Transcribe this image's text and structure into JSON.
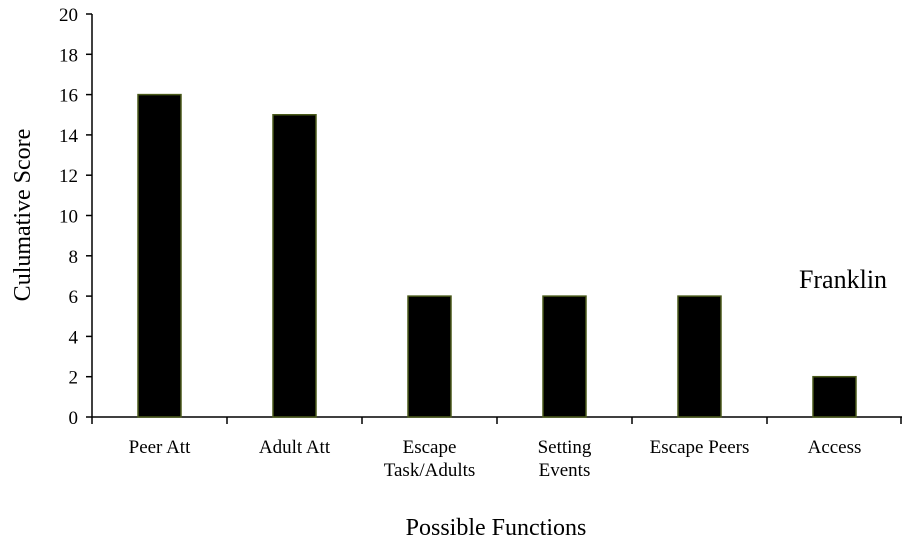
{
  "chart_data": {
    "type": "bar",
    "title": "",
    "annotation": "Franklin",
    "xlabel": "Possible Functions",
    "ylabel": "Culumative Score",
    "categories": [
      [
        "Peer Att"
      ],
      [
        "Adult Att"
      ],
      [
        "Escape",
        "Task/Adults"
      ],
      [
        "Setting",
        "Events"
      ],
      [
        "Escape Peers"
      ],
      [
        "Access"
      ]
    ],
    "values": [
      16,
      15,
      6,
      6,
      6,
      2
    ],
    "ylim": [
      0,
      20
    ],
    "yticks": [
      0,
      2,
      4,
      6,
      8,
      10,
      12,
      14,
      16,
      18,
      20
    ],
    "grid": false,
    "legend": "none",
    "colors": {
      "bar_fill": "#000000",
      "bar_stroke": "#4a5a1a",
      "axis": "#000000"
    }
  }
}
